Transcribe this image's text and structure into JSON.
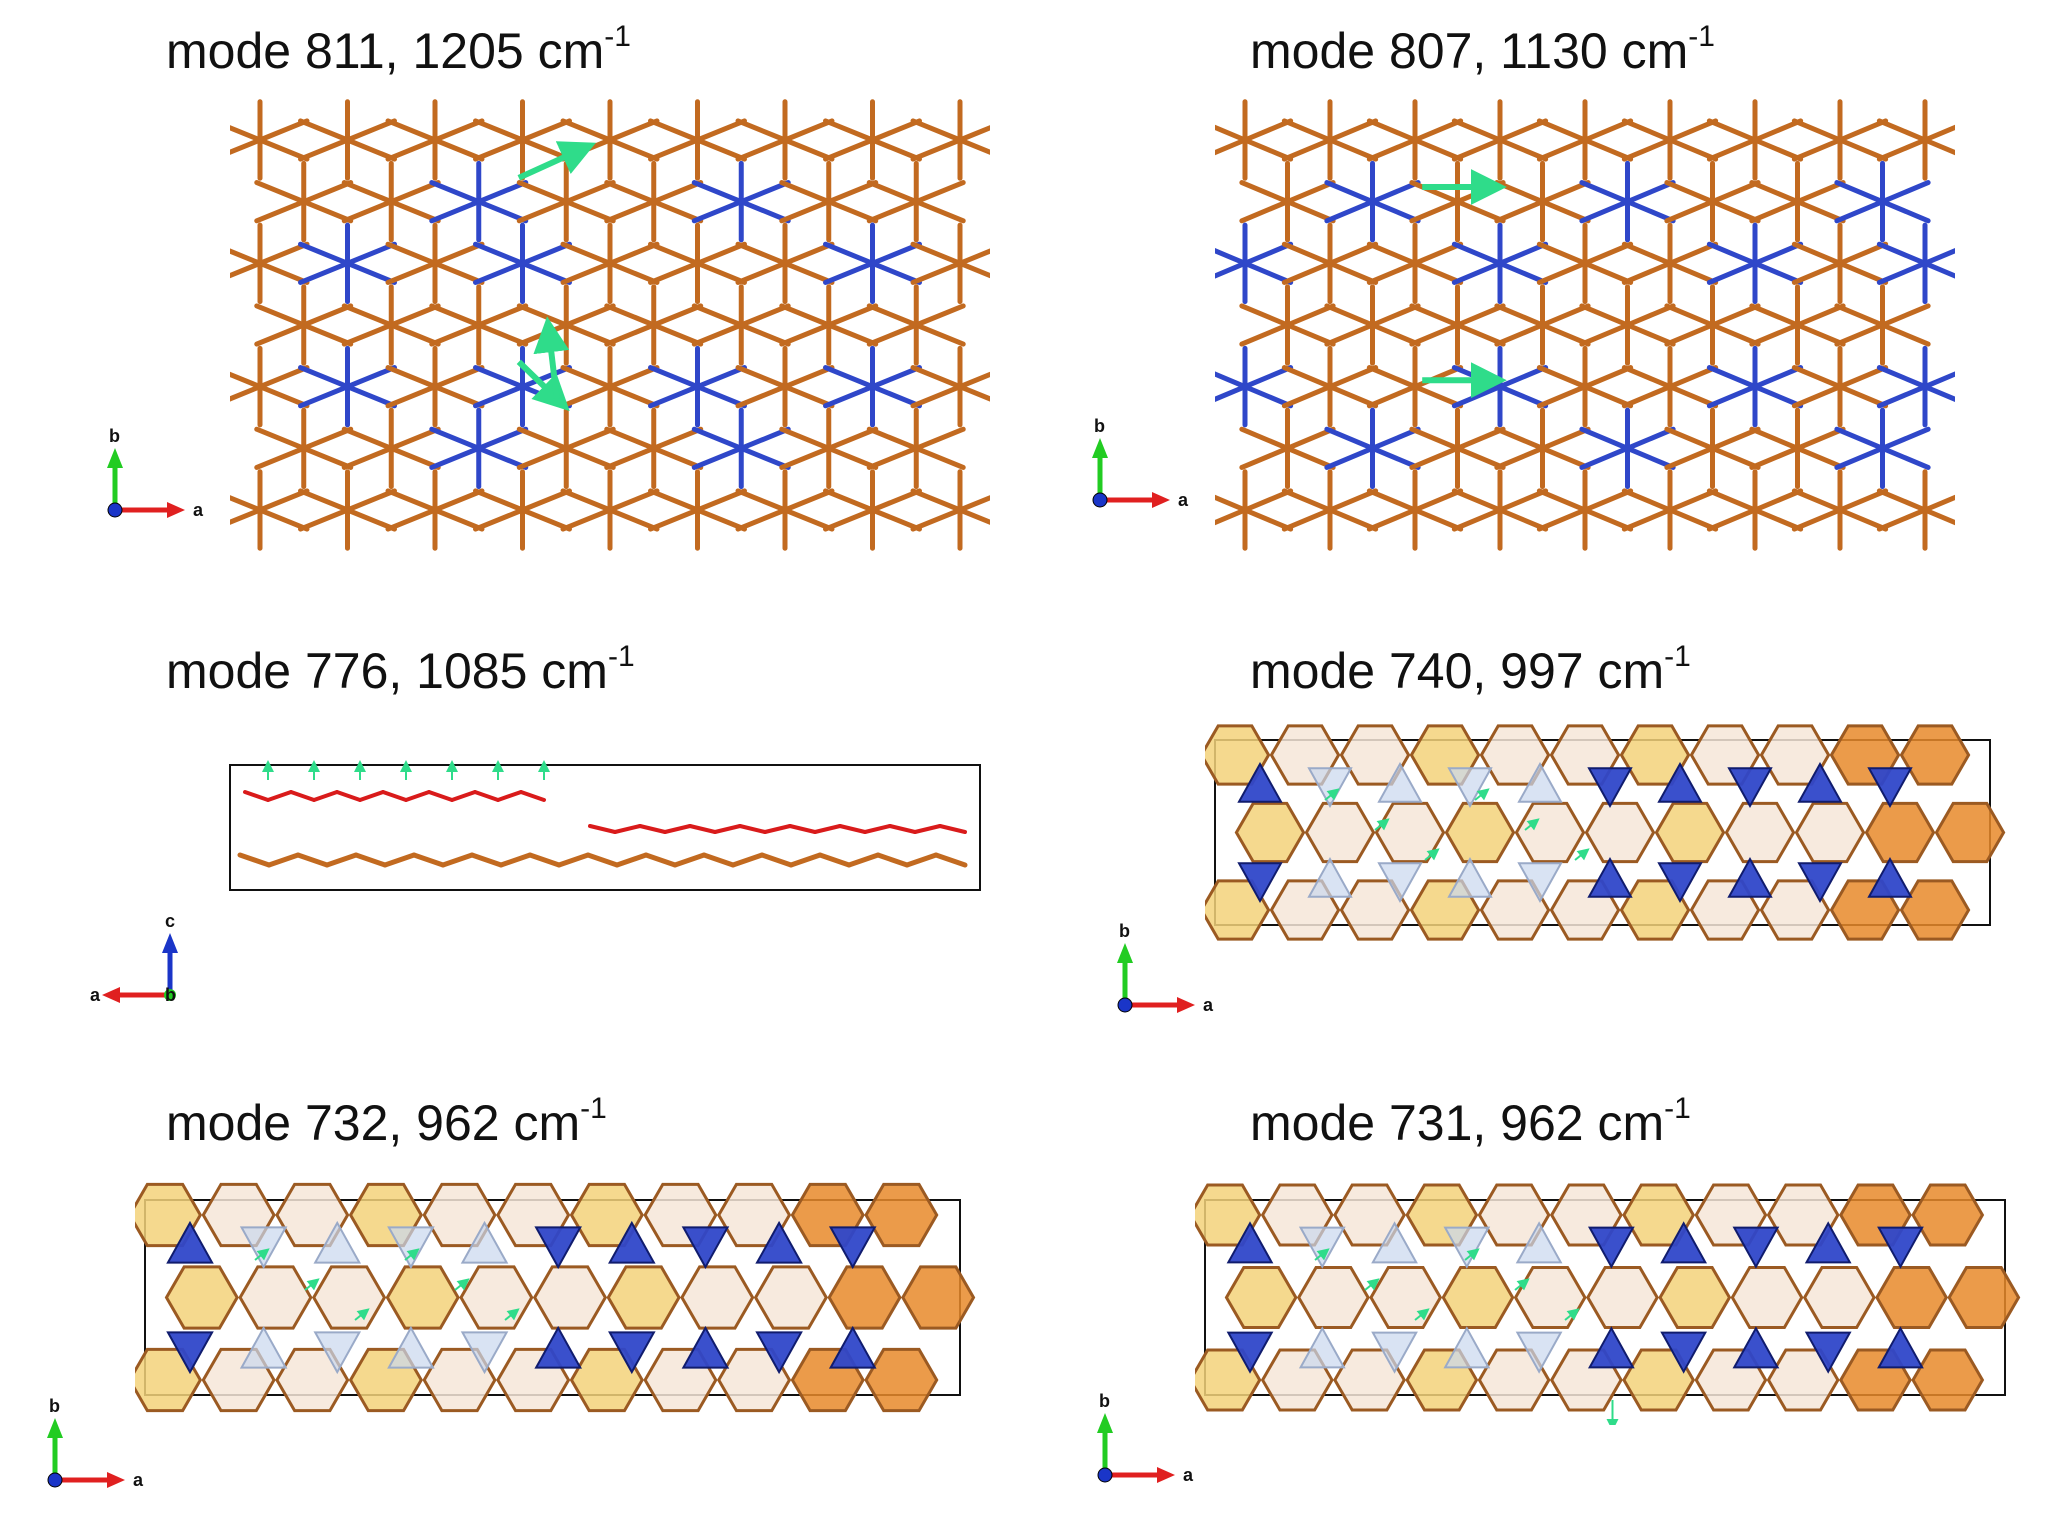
{
  "panels": [
    {
      "id": "p811",
      "prefix": "mode 811, 1205 cm",
      "sup": "-1",
      "view": "ball",
      "axes": {
        "h": "a",
        "v": "b",
        "dir": "right"
      }
    },
    {
      "id": "p807",
      "prefix": "mode 807, 1130 cm",
      "sup": "-1",
      "view": "ball",
      "axes": {
        "h": "a",
        "v": "b",
        "dir": "right"
      }
    },
    {
      "id": "p776",
      "prefix": "mode 776, 1085 cm",
      "sup": "-1",
      "view": "side",
      "axes": {
        "h": "a",
        "v": "c",
        "dir": "left",
        "origin": "b"
      }
    },
    {
      "id": "p740",
      "prefix": "mode 740, 997 cm",
      "sup": "-1",
      "view": "poly",
      "axes": {
        "h": "a",
        "v": "b",
        "dir": "right"
      }
    },
    {
      "id": "p732",
      "prefix": "mode 732, 962 cm",
      "sup": "-1",
      "view": "poly",
      "axes": {
        "h": "a",
        "v": "b",
        "dir": "right"
      }
    },
    {
      "id": "p731",
      "prefix": "mode 731, 962 cm",
      "sup": "-1",
      "view": "poly",
      "axes": {
        "h": "a",
        "v": "b",
        "dir": "right"
      }
    }
  ],
  "colors": {
    "metal_orange": "#e8892a",
    "metal_blue": "#2f47c9",
    "oxygen": "#d91b1b",
    "hydrogen": "#f2d4d4",
    "displacement": "#2fdc8a",
    "axis_a": "#e02020",
    "axis_b": "#22cc22",
    "axis_c": "#1a35c8",
    "cell": "#111111"
  }
}
